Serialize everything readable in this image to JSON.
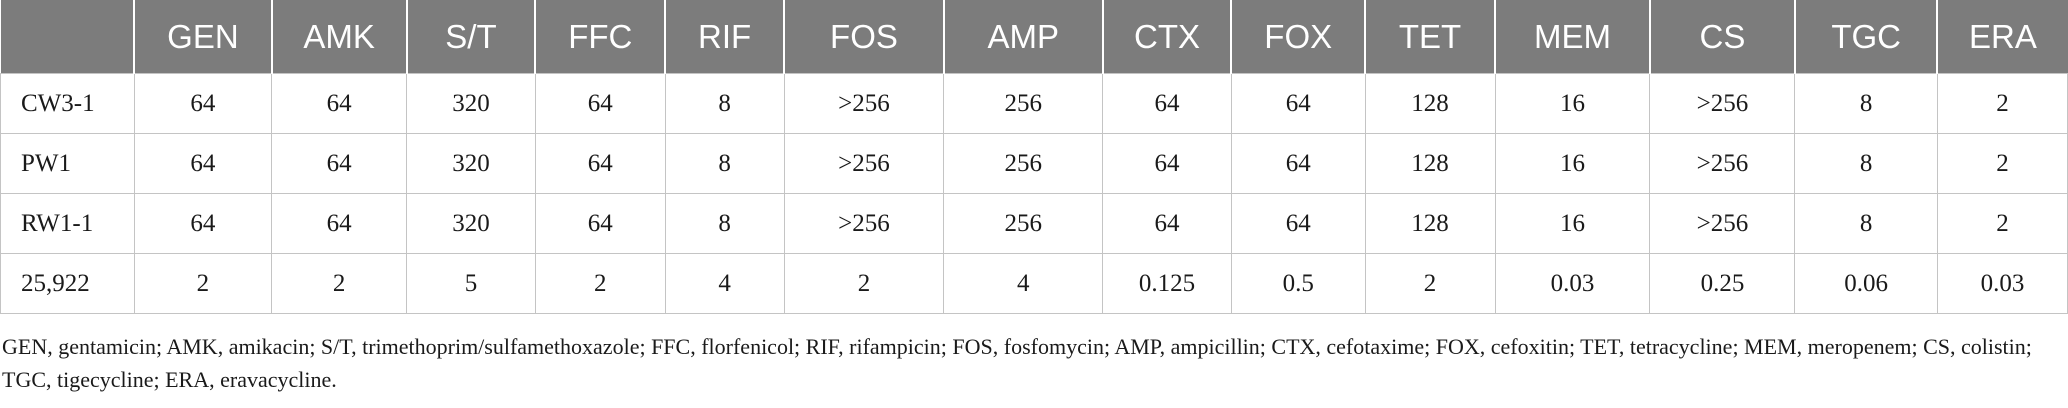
{
  "table": {
    "headers": [
      "",
      "GEN",
      "AMK",
      "S/T",
      "FFC",
      "RIF",
      "FOS",
      "AMP",
      "CTX",
      "FOX",
      "TET",
      "MEM",
      "CS",
      "TGC",
      "ERA"
    ],
    "rows": [
      [
        "CW3-1",
        "64",
        "64",
        "320",
        "64",
        "8",
        ">256",
        "256",
        "64",
        "64",
        "128",
        "16",
        ">256",
        "8",
        "2"
      ],
      [
        "PW1",
        "64",
        "64",
        "320",
        "64",
        "8",
        ">256",
        "256",
        "64",
        "64",
        "128",
        "16",
        ">256",
        "8",
        "2"
      ],
      [
        "RW1-1",
        "64",
        "64",
        "320",
        "64",
        "8",
        ">256",
        "256",
        "64",
        "64",
        "128",
        "16",
        ">256",
        "8",
        "2"
      ],
      [
        "25,922",
        "2",
        "2",
        "5",
        "2",
        "4",
        "2",
        "4",
        "0.125",
        "0.5",
        "2",
        "0.03",
        "0.25",
        "0.06",
        "0.03"
      ]
    ],
    "colors": {
      "header_bg": "#7c7c7c",
      "header_text": "#ffffff",
      "grid": "#c4c4c4"
    }
  },
  "footnote": "GEN, gentamicin; AMK, amikacin; S/T, trimethoprim/sulfamethoxazole; FFC, florfenicol; RIF, rifampicin; FOS, fosfomycin; AMP, ampicillin; CTX, cefotaxime; FOX, cefoxitin; TET, tetracycline; MEM, meropenem; CS, colistin; TGC, tigecycline; ERA, eravacycline."
}
